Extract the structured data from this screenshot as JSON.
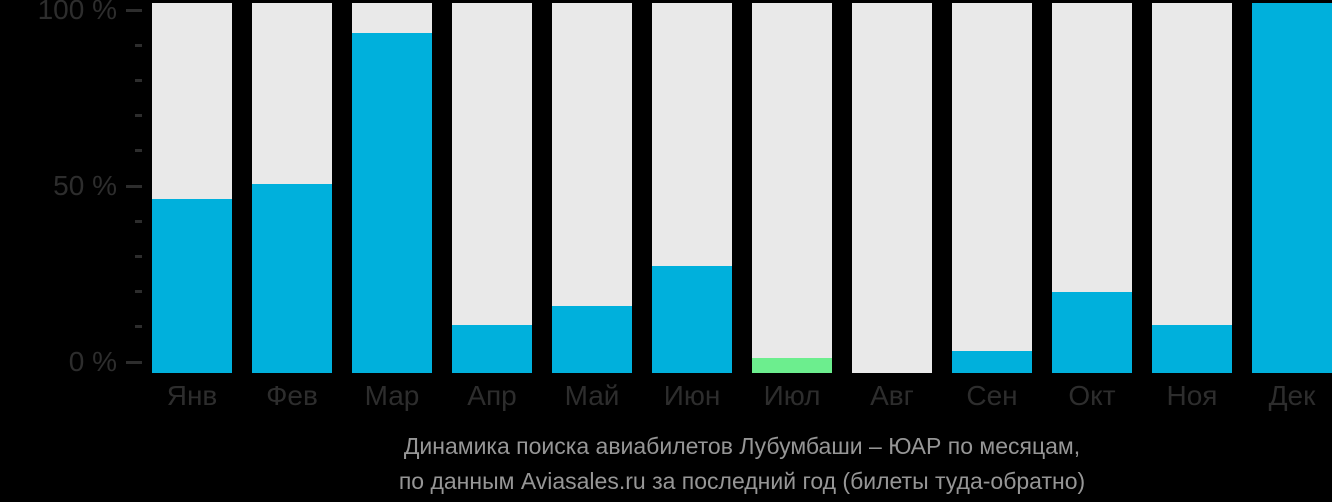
{
  "chart_data": {
    "type": "bar",
    "categories": [
      "Янв",
      "Фев",
      "Мар",
      "Апр",
      "Май",
      "Июн",
      "Июл",
      "Авг",
      "Сен",
      "Окт",
      "Ноя",
      "Дек"
    ],
    "values": [
      47,
      51,
      92,
      13,
      18,
      29,
      4,
      0,
      6,
      22,
      13,
      100
    ],
    "highlight_index": 6,
    "title": "Динамика поиска авиабилетов Лубумбаши – ЮАР по месяцам,",
    "subtitle": "по данным Aviasales.ru за последний год (билеты туда-обратно)",
    "xlabel": "",
    "ylabel": "",
    "ylim": [
      0,
      100
    ],
    "yticks": [
      {
        "value": 100,
        "label": "100 %"
      },
      {
        "value": 50,
        "label": "50 %"
      },
      {
        "value": 0,
        "label": "0 %"
      }
    ],
    "minor_tick_step": 10,
    "grid": false,
    "legend": "none",
    "bar_style": "filled value bar over full-height light track",
    "colors": {
      "background": "#000000",
      "bar_track": "#e9e9e9",
      "bar_fill": "#00b0dc",
      "bar_highlight": "#6cee8e",
      "axis_text": "#2d2d2d",
      "caption_text": "#969696"
    }
  }
}
